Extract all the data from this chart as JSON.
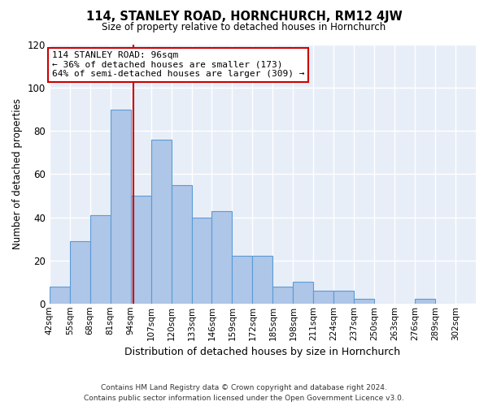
{
  "title": "114, STANLEY ROAD, HORNCHURCH, RM12 4JW",
  "subtitle": "Size of property relative to detached houses in Hornchurch",
  "xlabel": "Distribution of detached houses by size in Hornchurch",
  "ylabel": "Number of detached properties",
  "bin_labels": [
    "42sqm",
    "55sqm",
    "68sqm",
    "81sqm",
    "94sqm",
    "107sqm",
    "120sqm",
    "133sqm",
    "146sqm",
    "159sqm",
    "172sqm",
    "185sqm",
    "198sqm",
    "211sqm",
    "224sqm",
    "237sqm",
    "250sqm",
    "263sqm",
    "276sqm",
    "289sqm",
    "302sqm"
  ],
  "bin_edges": [
    42,
    55,
    68,
    81,
    94,
    107,
    120,
    133,
    146,
    159,
    172,
    185,
    198,
    211,
    224,
    237,
    250,
    263,
    276,
    289,
    302
  ],
  "bar_heights": [
    8,
    29,
    41,
    90,
    50,
    76,
    55,
    40,
    43,
    22,
    22,
    8,
    10,
    6,
    6,
    2,
    0,
    0,
    2,
    0
  ],
  "bar_color": "#aec6e8",
  "bar_edgecolor": "#5b9bd5",
  "property_size": 96,
  "vline_color": "#cc0000",
  "annotation_title": "114 STANLEY ROAD: 96sqm",
  "annotation_line1": "← 36% of detached houses are smaller (173)",
  "annotation_line2": "64% of semi-detached houses are larger (309) →",
  "annotation_box_edgecolor": "#cc0000",
  "annotation_box_facecolor": "#ffffff",
  "ylim": [
    0,
    120
  ],
  "yticks": [
    0,
    20,
    40,
    60,
    80,
    100,
    120
  ],
  "plot_bg_color": "#e8eef7",
  "fig_bg_color": "#ffffff",
  "grid_color": "#ffffff",
  "footer_line1": "Contains HM Land Registry data © Crown copyright and database right 2024.",
  "footer_line2": "Contains public sector information licensed under the Open Government Licence v3.0."
}
